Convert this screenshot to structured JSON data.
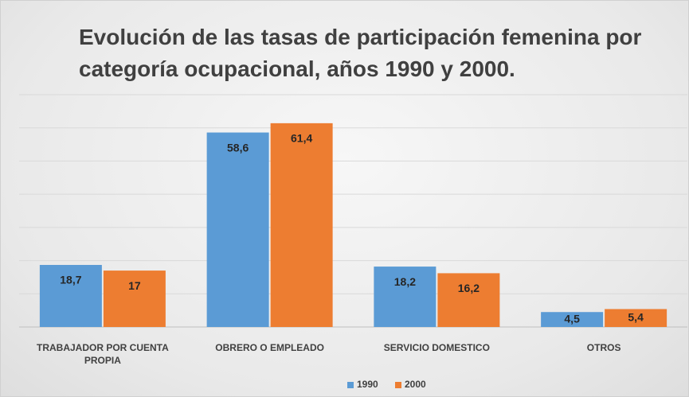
{
  "chart_data": {
    "type": "bar",
    "title": "Evolución de las tasas de participación femenina por categoría ocupacional, años 1990 y 2000.",
    "categories": [
      "TRABAJADOR POR CUENTA PROPIA",
      "OBRERO O EMPLEADO",
      "SERVICIO DOMESTICO",
      "OTROS"
    ],
    "series": [
      {
        "name": "1990",
        "color": "#5b9bd5",
        "values": [
          18.7,
          58.6,
          18.2,
          4.5
        ],
        "value_labels": [
          "18,7",
          "58,6",
          "18,2",
          "4,5"
        ]
      },
      {
        "name": "2000",
        "color": "#ed7d31",
        "values": [
          17,
          61.4,
          16.2,
          5.4
        ],
        "value_labels": [
          "17",
          "61,4",
          "16,2",
          "5,4"
        ]
      }
    ],
    "ylim": [
      0,
      70
    ],
    "yticks": [
      0,
      10,
      20,
      30,
      40,
      50,
      60,
      70
    ],
    "grid": true,
    "legend": "bottom"
  }
}
